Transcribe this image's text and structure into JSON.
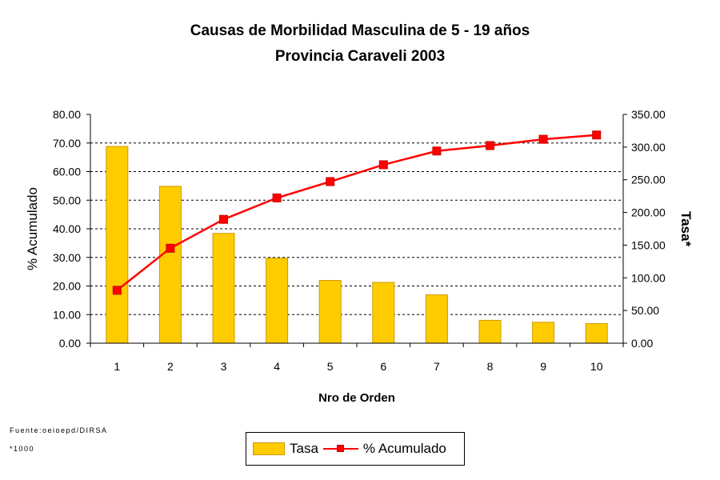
{
  "chart_data": {
    "type": "bar",
    "title": "Causas de Morbilidad Masculina de 5 - 19 años",
    "subtitle": "Provincia Caraveli 2003",
    "xlabel": "Nro de Orden",
    "ylabel_left": "% Acumulado",
    "ylabel_right": "Tasa*",
    "categories": [
      "1",
      "2",
      "3",
      "4",
      "5",
      "6",
      "7",
      "8",
      "9",
      "10"
    ],
    "y_left": {
      "min": 0,
      "max": 80,
      "ticks": [
        "0.00",
        "10.00",
        "20.00",
        "30.00",
        "40.00",
        "50.00",
        "60.00",
        "70.00",
        "80.00"
      ]
    },
    "y_right": {
      "min": 0,
      "max": 350,
      "ticks": [
        "0.00",
        "50.00",
        "100.00",
        "150.00",
        "200.00",
        "250.00",
        "300.00",
        "350.00"
      ]
    },
    "grid": true,
    "legend_position": "bottom",
    "series": [
      {
        "name": "Tasa",
        "type": "bar",
        "axis": "right",
        "color": "#FFCC00",
        "values": [
          301,
          240,
          168,
          130,
          96,
          93,
          74,
          35,
          32,
          30
        ]
      },
      {
        "name": "% Acumulado",
        "type": "line",
        "axis": "left",
        "color": "#FF0000",
        "values": [
          18.5,
          33.2,
          43.3,
          50.8,
          56.5,
          62.4,
          67.2,
          69.1,
          71.3,
          72.8
        ]
      }
    ]
  },
  "notes": {
    "source": "Fuente:oeioepd/DIRSA",
    "footnote": "*1000"
  },
  "legend": {
    "bar_label": "Tasa",
    "line_label": "% Acumulado"
  }
}
